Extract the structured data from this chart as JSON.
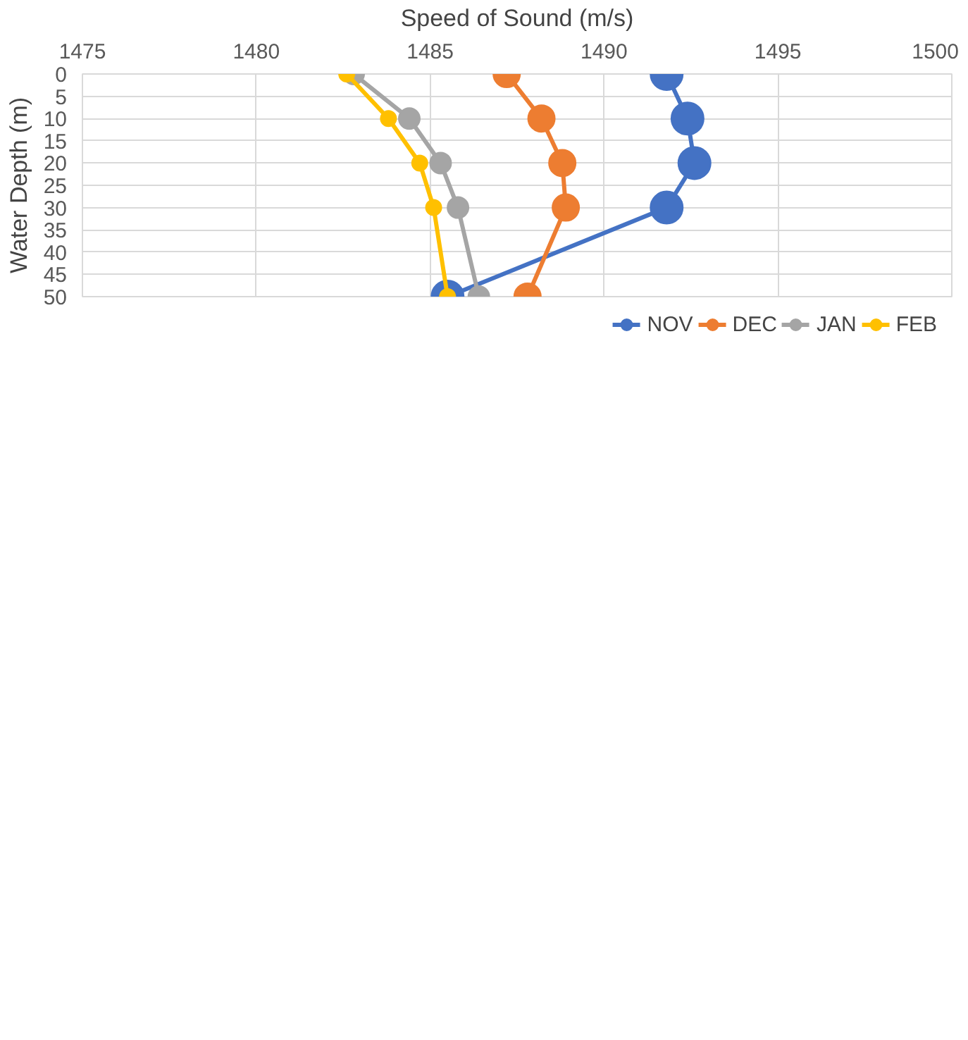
{
  "chart_data": {
    "type": "line",
    "xlabel": "Speed of Sound (m/s)",
    "ylabel": "Water Depth (m)",
    "xlim": [
      1475,
      1500
    ],
    "xticks": [
      1475,
      1480,
      1485,
      1490,
      1495,
      1500
    ],
    "ylim": [
      50,
      0
    ],
    "yticks": [
      0,
      5,
      10,
      15,
      20,
      25,
      30,
      35,
      40,
      45,
      50
    ],
    "grid": true,
    "legend": "bottom",
    "marker": "circle",
    "line_style": "solid",
    "series": [
      {
        "name": "NOV",
        "color": "#4472c4",
        "x": [
          1491.8,
          1492.4,
          1492.6,
          1491.8,
          1485.5
        ],
        "values": [
          0,
          10,
          20,
          30,
          50
        ]
      },
      {
        "name": "DEC",
        "color": "#ed7d31",
        "x": [
          1487.2,
          1488.2,
          1488.8,
          1488.9,
          1487.8
        ],
        "values": [
          0,
          10,
          20,
          30,
          50
        ]
      },
      {
        "name": "JAN",
        "color": "#a5a5a5",
        "x": [
          1482.8,
          1484.4,
          1485.3,
          1485.8,
          1486.4
        ],
        "values": [
          0,
          10,
          20,
          30,
          50
        ]
      },
      {
        "name": "FEB",
        "color": "#ffc000",
        "x": [
          1482.6,
          1483.8,
          1484.7,
          1485.1,
          1485.5
        ],
        "values": [
          0,
          10,
          20,
          30,
          50
        ]
      }
    ]
  }
}
